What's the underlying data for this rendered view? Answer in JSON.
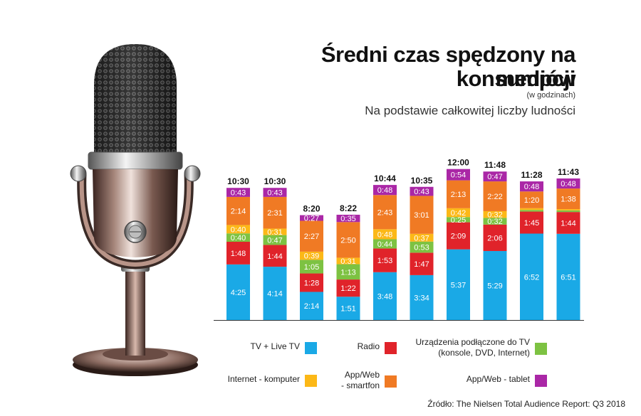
{
  "header": {
    "title_line1": "Średni czas spędzony na konsumpcji",
    "title_line2": "mediów",
    "unit_note": "(w godzinach)",
    "subtitle": "Na podstawie całkowitej liczby ludności"
  },
  "source": "Źródło: The Nielsen Total Audience Report: Q3 2018",
  "legend": {
    "tv": "TV + Live TV",
    "radio": "Radio",
    "devices": [
      "Urządzenia podłączone do TV",
      "(konsole, DVD, Internet)"
    ],
    "computer": "Internet - komputer",
    "smartphone": [
      "App/Web",
      "- smartfon"
    ],
    "tablet": "App/Web - tablet"
  },
  "colors": {
    "tv": "#1aa9e6",
    "radio": "#e0232a",
    "devices": "#7dc242",
    "computer": "#fcb817",
    "smartphone": "#f07a24",
    "tablet": "#aa27a6"
  },
  "chart_data": {
    "type": "bar",
    "stacked": true,
    "unit": "h:mm",
    "series_order": [
      "tv",
      "radio",
      "devices",
      "computer",
      "smartphone",
      "tablet"
    ],
    "totals": [
      "10:30",
      "10:30",
      "8:20",
      "8:22",
      "10:44",
      "10:35",
      "12:00",
      "11:48",
      "11:28",
      "11:43"
    ],
    "series": [
      {
        "name": "TV + Live TV",
        "key": "tv",
        "values": [
          "4:25",
          "4:14",
          "2:14",
          "1:51",
          "3:48",
          "3:34",
          "5:37",
          "5:29",
          "6:52",
          "6:51"
        ]
      },
      {
        "name": "Radio",
        "key": "radio",
        "values": [
          "1:48",
          "1:44",
          "1:28",
          "1:22",
          "1:53",
          "1:47",
          "2:09",
          "2:06",
          "1:45",
          "1:44"
        ]
      },
      {
        "name": "Urządzenia podłączone do TV",
        "key": "devices",
        "values": [
          "0:40",
          "0:47",
          "1:05",
          "1:13",
          "0:44",
          "0:53",
          "0:25",
          "0:32",
          "",
          ""
        ]
      },
      {
        "name": "Internet - komputer",
        "key": "computer",
        "values": [
          "0:40",
          "0:31",
          "0:39",
          "0:31",
          "0:48",
          "0:37",
          "0:42",
          "0:32",
          "",
          ""
        ]
      },
      {
        "name": "App/Web - smartfon",
        "key": "smartphone",
        "values": [
          "2:14",
          "2:31",
          "2:27",
          "2:50",
          "2:43",
          "3:01",
          "2:13",
          "2:22",
          "1:20",
          "1:38"
        ]
      },
      {
        "name": "App/Web - tablet",
        "key": "tablet",
        "values": [
          "0:43",
          "0:43",
          "0:27",
          "0:35",
          "0:48",
          "0:43",
          "0:54",
          "0:47",
          "0:48",
          "0:48"
        ]
      }
    ],
    "unlabeled_segments": {
      "devices": [
        null,
        null,
        null,
        null,
        null,
        null,
        null,
        null,
        8,
        8
      ],
      "computer": [
        null,
        null,
        null,
        null,
        null,
        null,
        null,
        null,
        8,
        6
      ]
    },
    "ylim": [
      0,
      780
    ]
  }
}
